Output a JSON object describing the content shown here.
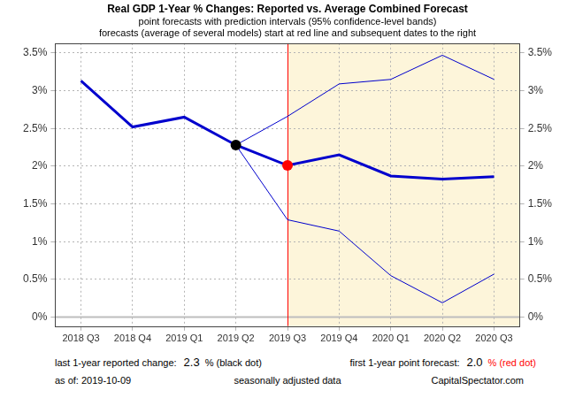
{
  "chart_data": {
    "type": "line",
    "title": "Real GDP 1-Year % Changes: Reported vs. Average Combined Forecast",
    "subtitle": [
      "point forecasts with prediction intervals (95% confidence-level bands)",
      "forecasts (average of several models) start at red line and subsequent dates to the right"
    ],
    "categories": [
      "2018 Q3",
      "2018 Q4",
      "2019 Q1",
      "2019 Q2",
      "2019 Q3",
      "2019 Q4",
      "2020 Q1",
      "2020 Q2",
      "2020 Q3"
    ],
    "series": [
      {
        "color": "#0000cd",
        "line_style": "bold",
        "marker": "none",
        "values": [
          3.13,
          2.52,
          2.65,
          2.28,
          2.01,
          2.15,
          1.87,
          1.83,
          1.86
        ]
      },
      {
        "color": "#0000cd",
        "line_style": "solid",
        "marker": "none",
        "values": [
          null,
          null,
          null,
          2.28,
          2.66,
          3.09,
          3.15,
          3.47,
          3.15
        ]
      },
      {
        "color": "#0000cd",
        "line_style": "solid",
        "marker": "none",
        "values": [
          null,
          null,
          null,
          2.28,
          1.29,
          1.14,
          0.55,
          0.19,
          0.57
        ]
      },
      {
        "color": "#000000",
        "line_style": "none",
        "marker": "circle",
        "values": [
          null,
          null,
          null,
          2.28,
          null,
          null,
          null,
          null,
          null
        ]
      },
      {
        "color": "#ff0000",
        "line_style": "none",
        "marker": "circle",
        "values": [
          null,
          null,
          null,
          null,
          2.01,
          null,
          null,
          null,
          null
        ]
      }
    ],
    "forecast_start": "2019 Q3",
    "reference_y": 0,
    "ylim": [
      -0.12,
      3.63
    ],
    "yticks": [
      {
        "value": 0,
        "label": "0%"
      },
      {
        "value": 0.5,
        "label": "0.5%"
      },
      {
        "value": 1,
        "label": "1%"
      },
      {
        "value": 1.5,
        "label": "1.5%"
      },
      {
        "value": 2,
        "label": "2%"
      },
      {
        "value": 2.5,
        "label": "2.5%"
      },
      {
        "value": 3,
        "label": "3%"
      },
      {
        "value": 3.5,
        "label": "3.5%"
      }
    ],
    "y2lim": [
      -0.12,
      3.63
    ],
    "y2ticks": [
      {
        "value": 0,
        "label": "0%"
      },
      {
        "value": 0.5,
        "label": "0.5%"
      },
      {
        "value": 1,
        "label": "1%"
      },
      {
        "value": 1.5,
        "label": "1.5%"
      },
      {
        "value": 2,
        "label": "2%"
      },
      {
        "value": 2.5,
        "label": "2.5%"
      },
      {
        "value": 3,
        "label": "3%"
      },
      {
        "value": 3.5,
        "label": "3.5%"
      }
    ],
    "grid": true,
    "footer": {
      "reported_label": "last 1-year reported change:",
      "reported_value": "2.3",
      "reported_note": "% (black dot)",
      "forecast_label": "first 1-year point forecast:",
      "forecast_value": "2.0",
      "forecast_note": "% (red dot)",
      "as_of": "as of: 2019-10-09",
      "note": "seasonally adjusted data",
      "source": "CapitalSpectator.com"
    }
  }
}
